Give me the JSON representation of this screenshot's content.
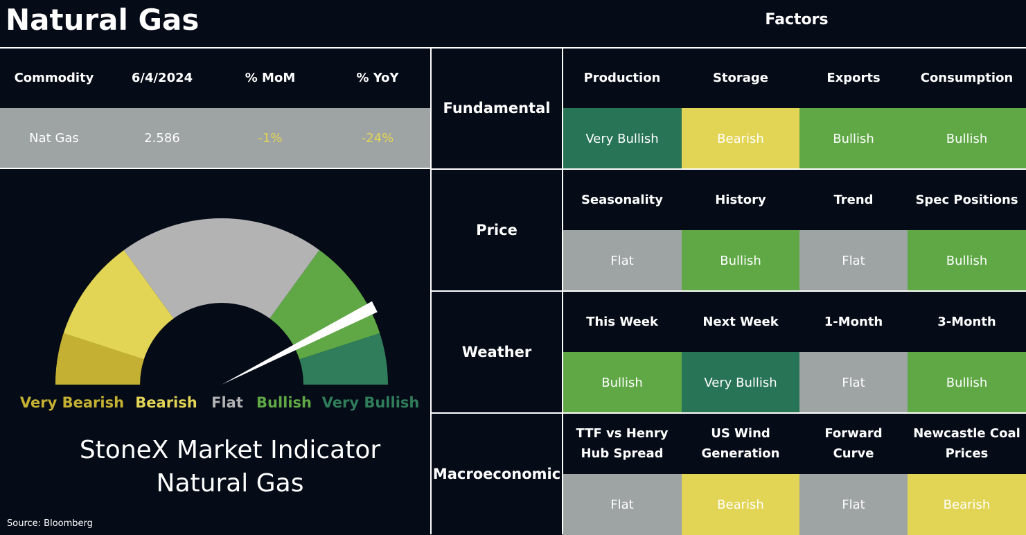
{
  "header": {
    "title": "Natural Gas",
    "factors_title": "Factors"
  },
  "table": {
    "columns": [
      "Commodity",
      "6/4/2024",
      "% MoM",
      "% YoY"
    ],
    "rows": [
      [
        "Nat Gas",
        "2.586",
        "-1%",
        "-24%"
      ]
    ],
    "value_colors": [
      "#ffffff",
      "#ffffff",
      "#e2d455",
      "#e2d455"
    ]
  },
  "gauge": {
    "labels": [
      {
        "text": "Very Bearish",
        "color": "#c4b032"
      },
      {
        "text": "Bearish",
        "color": "#e2d455"
      },
      {
        "text": "Flat",
        "color": "#b3b3b3"
      },
      {
        "text": "Bullish",
        "color": "#5fa845"
      },
      {
        "text": "Very Bullish",
        "color": "#2f7d5a"
      }
    ],
    "caption": "StoneX Market Indicator\nNatural Gas"
  },
  "source": "Source: Bloomberg",
  "factors": [
    {
      "name": "Fundamental",
      "items": [
        {
          "name": "Production",
          "signal": "Very Bullish",
          "color": "#287456"
        },
        {
          "name": "Storage",
          "signal": "Bearish",
          "color": "#e2d455"
        },
        {
          "name": "Exports",
          "signal": "Bullish",
          "color": "#5fa845"
        },
        {
          "name": "Consumption",
          "signal": "Bullish",
          "color": "#5fa845"
        }
      ]
    },
    {
      "name": "Price",
      "items": [
        {
          "name": "Seasonality",
          "signal": "Flat",
          "color": "#9ea3a3"
        },
        {
          "name": "History",
          "signal": "Bullish",
          "color": "#5fa845"
        },
        {
          "name": "Trend",
          "signal": "Flat",
          "color": "#9ea3a3"
        },
        {
          "name": "Spec Positions",
          "signal": "Bullish",
          "color": "#5fa845"
        }
      ]
    },
    {
      "name": "Weather",
      "items": [
        {
          "name": "This Week",
          "signal": "Bullish",
          "color": "#5fa845"
        },
        {
          "name": "Next Week",
          "signal": "Very Bullish",
          "color": "#287456"
        },
        {
          "name": "1-Month",
          "signal": "Flat",
          "color": "#9ea3a3"
        },
        {
          "name": "3-Month",
          "signal": "Bullish",
          "color": "#5fa845"
        }
      ]
    },
    {
      "name": "Macroeconomic",
      "items": [
        {
          "name": "TTF vs Henry\nHub Spread",
          "signal": "Flat",
          "color": "#9ea3a3"
        },
        {
          "name": "US Wind\nGeneration",
          "signal": "Bearish",
          "color": "#e2d455"
        },
        {
          "name": "Forward\nCurve",
          "signal": "Flat",
          "color": "#9ea3a3"
        },
        {
          "name": "Newcastle Coal\nPrices",
          "signal": "Bearish",
          "color": "#e2d455"
        }
      ]
    }
  ]
}
